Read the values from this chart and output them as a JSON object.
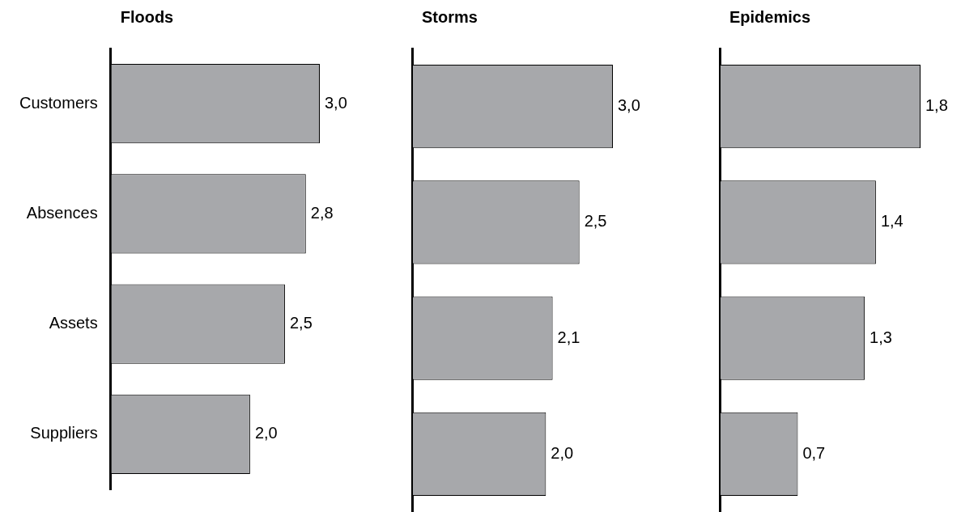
{
  "chart_data": [
    {
      "type": "bar",
      "orientation": "horizontal",
      "title": "Floods",
      "categories": [
        "Customers",
        "Absences",
        "Assets",
        "Suppliers"
      ],
      "values": [
        3.0,
        2.8,
        2.5,
        2.0
      ],
      "value_labels": [
        "3,0",
        "2,8",
        "2,5",
        "2,0"
      ],
      "color": "#a7a8ab",
      "tick_labels": "y"
    },
    {
      "type": "bar",
      "orientation": "horizontal",
      "title": "Storms",
      "categories": [
        null,
        null,
        null,
        null
      ],
      "values": [
        3.0,
        2.5,
        2.1,
        2.0
      ],
      "value_labels": [
        "3,0",
        "2,5",
        "2,1",
        "2,0"
      ],
      "color": "#a7a8ab",
      "tick_labels": false
    },
    {
      "type": "bar",
      "orientation": "horizontal",
      "title": "Epidemics",
      "categories": [
        null,
        null,
        null,
        null
      ],
      "values": [
        1.8,
        1.4,
        1.3,
        0.7
      ],
      "value_labels": [
        "1,8",
        "1,4",
        "1,3",
        "0,7"
      ],
      "color": "#a7a8ab",
      "tick_labels": false
    }
  ]
}
